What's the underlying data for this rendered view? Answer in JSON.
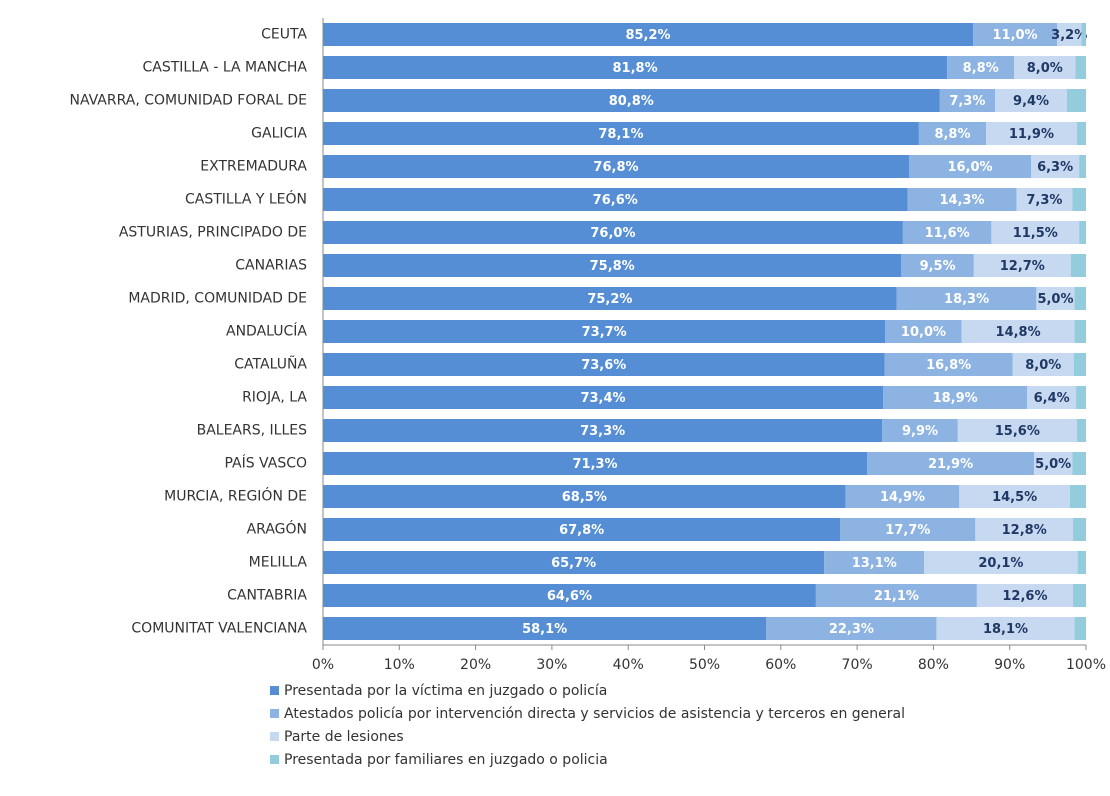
{
  "chart_data": {
    "type": "stacked-barh",
    "categories": [
      "CEUTA",
      "CASTILLA - LA MANCHA",
      "NAVARRA, COMUNIDAD FORAL DE",
      "GALICIA",
      "EXTREMADURA",
      "CASTILLA Y LEÓN",
      "ASTURIAS, PRINCIPADO DE",
      "CANARIAS",
      "MADRID, COMUNIDAD DE",
      "ANDALUCÍA",
      "CATALUÑA",
      "RIOJA, LA",
      "BALEARS, ILLES",
      "PAÍS VASCO",
      "MURCIA, REGIÓN DE",
      "ARAGÓN",
      "MELILLA",
      "CANTABRIA",
      "COMUNITAT VALENCIANA"
    ],
    "series": [
      {
        "name": "Presentada por la víctima en juzgado o policía",
        "color": "#558ed5",
        "values": [
          85.2,
          81.8,
          80.8,
          78.1,
          76.8,
          76.6,
          76.0,
          75.8,
          75.2,
          73.7,
          73.6,
          73.4,
          73.3,
          71.3,
          68.5,
          67.8,
          65.7,
          64.6,
          58.1
        ],
        "value_labels": [
          "85,2%",
          "81,8%",
          "80,8%",
          "78,1%",
          "76,8%",
          "76,6%",
          "76,0%",
          "75,8%",
          "75,2%",
          "73,7%",
          "73,6%",
          "73,4%",
          "73,3%",
          "71,3%",
          "68,5%",
          "67,8%",
          "65,7%",
          "64,6%",
          "58,1%"
        ]
      },
      {
        "name": "Atestados policía por intervención directa y servicios de asistencia y terceros en general",
        "color": "#8db3e2",
        "values": [
          11.0,
          8.8,
          7.3,
          8.8,
          16.0,
          14.3,
          11.6,
          9.5,
          18.3,
          10.0,
          16.8,
          18.9,
          9.9,
          21.9,
          14.9,
          17.7,
          13.1,
          21.1,
          22.3
        ],
        "value_labels": [
          "11,0%",
          "8,8%",
          "7,3%",
          "8,8%",
          "16,0%",
          "14,3%",
          "11,6%",
          "9,5%",
          "18,3%",
          "10,0%",
          "16,8%",
          "18,9%",
          "9,9%",
          "21,9%",
          "14,9%",
          "17,7%",
          "13,1%",
          "21,1%",
          "22,3%"
        ]
      },
      {
        "name": "Parte de lesiones",
        "color": "#c6d9f1",
        "values": [
          3.2,
          8.0,
          9.4,
          11.9,
          6.3,
          7.3,
          11.5,
          12.7,
          5.0,
          14.8,
          8.0,
          6.4,
          15.6,
          5.0,
          14.5,
          12.8,
          20.1,
          12.6,
          18.1
        ],
        "value_labels": [
          "3,2%",
          "8,0%",
          "9,4%",
          "11,9%",
          "6,3%",
          "7,3%",
          "11,5%",
          "12,7%",
          "5,0%",
          "14,8%",
          "8,0%",
          "6,4%",
          "15,6%",
          "5,0%",
          "14,5%",
          "12,8%",
          "20,1%",
          "12,6%",
          "18,1%"
        ]
      },
      {
        "name": "Presentada por familiares en juzgado o policia",
        "color": "#93cddd",
        "values": [
          0.6,
          1.4,
          2.5,
          1.2,
          0.9,
          1.8,
          0.9,
          2.0,
          1.5,
          1.5,
          1.6,
          1.3,
          1.2,
          1.8,
          2.1,
          1.7,
          1.1,
          1.7,
          1.5
        ]
      }
    ],
    "xlim": [
      0,
      100
    ],
    "xticks": [
      {
        "value": 0,
        "label": "0%"
      },
      {
        "value": 10,
        "label": "10%"
      },
      {
        "value": 20,
        "label": "20%"
      },
      {
        "value": 30,
        "label": "30%"
      },
      {
        "value": 40,
        "label": "40%"
      },
      {
        "value": 50,
        "label": "50%"
      },
      {
        "value": 60,
        "label": "60%"
      },
      {
        "value": 70,
        "label": "70%"
      },
      {
        "value": 80,
        "label": "80%"
      },
      {
        "value": 90,
        "label": "90%"
      },
      {
        "value": 100,
        "label": "100%"
      }
    ]
  }
}
